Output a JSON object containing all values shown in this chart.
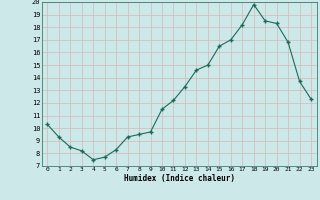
{
  "x": [
    0,
    1,
    2,
    3,
    4,
    5,
    6,
    7,
    8,
    9,
    10,
    11,
    12,
    13,
    14,
    15,
    16,
    17,
    18,
    19,
    20,
    21,
    22,
    23
  ],
  "y": [
    10.3,
    9.3,
    8.5,
    8.2,
    7.5,
    7.7,
    8.3,
    9.3,
    9.5,
    9.7,
    11.5,
    12.2,
    13.3,
    14.6,
    15.0,
    16.5,
    17.0,
    18.2,
    19.8,
    18.5,
    18.3,
    16.8,
    13.7,
    12.3
  ],
  "xlabel": "Humidex (Indice chaleur)",
  "ylim": [
    7,
    20
  ],
  "xlim": [
    -0.5,
    23.5
  ],
  "yticks": [
    7,
    8,
    9,
    10,
    11,
    12,
    13,
    14,
    15,
    16,
    17,
    18,
    19,
    20
  ],
  "xticks": [
    0,
    1,
    2,
    3,
    4,
    5,
    6,
    7,
    8,
    9,
    10,
    11,
    12,
    13,
    14,
    15,
    16,
    17,
    18,
    19,
    20,
    21,
    22,
    23
  ],
  "line_color": "#1a6b5a",
  "marker_color": "#1a6b5a",
  "bg_color": "#cce8e8",
  "grid_color": "#d4b8b8",
  "spine_color": "#1a6b5a"
}
